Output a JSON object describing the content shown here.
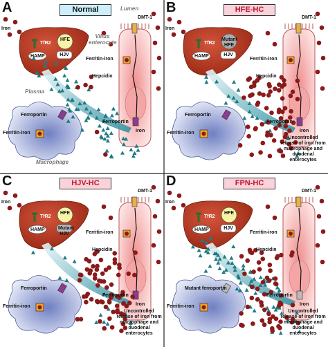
{
  "panels": [
    {
      "letter": "A",
      "title": "Normal",
      "lumen": "Lumen",
      "dmt1": "DMT-1",
      "iron_lumen": "Iron",
      "tfr2": "TfR2",
      "hfe": "HFE",
      "hjv": "HJV",
      "hamp": "HAMP",
      "enterocyte": "Villus enterocyte",
      "ferritin_enterocyte": "Ferritin-iron",
      "hepcidin": "Hepcidin",
      "plasma": "Plasma",
      "ferroportin_macrophage": "Ferroportin",
      "ferritin_macrophage": "Ferritin-iron",
      "ferroportin_enterocyte": "Ferroportin",
      "iron_plasma": "Iron",
      "macrophage": "Macrophage"
    },
    {
      "letter": "B",
      "title": "HFE-HC",
      "dmt1": "DMT-1",
      "iron_lumen": "Iron",
      "tfr2": "TfR2",
      "hfe": "Mutant HFE",
      "hjv": "HJV",
      "hamp": "HAMP",
      "ferritin_enterocyte": "Ferritin-iron",
      "hepcidin": "Hepcidin",
      "ferroportin_macrophage": "Ferroportin",
      "ferritin_macrophage": "Ferritin-iron",
      "ferroportin_enterocyte": "Ferroportin",
      "iron_plasma": "Iron",
      "uncontrolled": "Uncontrolled release of iron from macrophage and duodenal enterocytes"
    },
    {
      "letter": "C",
      "title": "HJV-HC",
      "dmt1": "DMT-1",
      "iron_lumen": "Iron",
      "tfr2": "TfR2",
      "hfe": "HFE",
      "hjv": "Mutant HJV",
      "hamp": "HAMP",
      "ferritin_enterocyte": "Ferritin-iron",
      "hepcidin": "Hepcidin",
      "ferroportin_macrophage": "Ferroportin",
      "ferritin_macrophage": "Ferritin-iron",
      "ferroportin_enterocyte": "Ferroportin",
      "iron_plasma": "Iron",
      "uncontrolled": "Uncontrolled release of iron from macrophage and duodenal enterocytes"
    },
    {
      "letter": "D",
      "title": "FPN-HC",
      "dmt1": "DMT-1",
      "iron_lumen": "Iron",
      "tfr2": "TfR2",
      "hfe": "HFE",
      "hjv": "HJV",
      "hamp": "HAMP",
      "ferritin_enterocyte": "Ferritin-iron",
      "hepcidin": "Hepcidin",
      "ferroportin_macrophage": "Mutant ferroportin",
      "ferritin_macrophage": "Ferritin-iron",
      "ferroportin_enterocyte": "Ferroportin",
      "iron_plasma": "Iron",
      "uncontrolled": "Uncontrolled release of iron from macrophage and duodenal enterocytes"
    }
  ]
}
